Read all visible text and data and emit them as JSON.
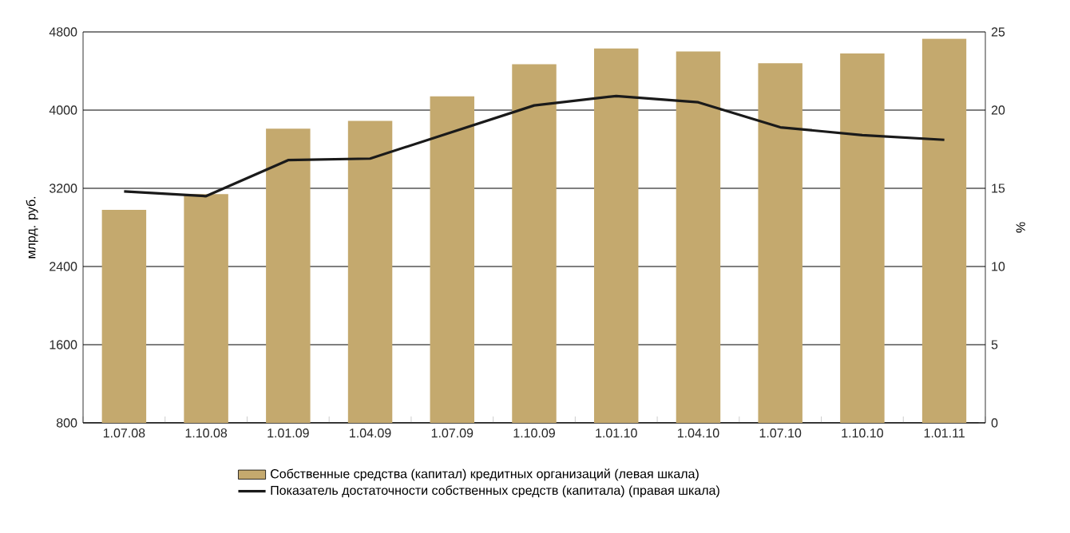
{
  "chart_data": {
    "type": "bar",
    "ylabel": "млрд. руб.",
    "y2label": "%",
    "categories": [
      "1.07.08",
      "1.10.08",
      "1.01.09",
      "1.04.09",
      "1.07.09",
      "1.10.09",
      "1.01.10",
      "1.04.10",
      "1.07.10",
      "1.10.10",
      "1.01.11"
    ],
    "series": [
      {
        "name": "Собственные средства (капитал) кредитных организаций (левая шкала)",
        "color": "#c4a96e",
        "values": [
          2980,
          3140,
          3810,
          3890,
          4140,
          4470,
          4630,
          4600,
          4480,
          4580,
          4730
        ]
      },
      {
        "name": "Показатель достаточности собственных средств (капитала) (правая шкала)",
        "type": "line",
        "axis": "y2",
        "color": "#1a1a1a",
        "values": [
          14.8,
          14.5,
          16.8,
          16.9,
          18.6,
          20.3,
          20.9,
          20.5,
          18.9,
          18.4,
          18.1
        ]
      }
    ],
    "ylim": [
      800,
      4800
    ],
    "yticks": [
      800,
      1600,
      2400,
      3200,
      4000,
      4800
    ],
    "y2lim": [
      0,
      25
    ],
    "y2ticks": [
      0,
      5,
      10,
      15,
      20,
      25
    ],
    "grid": "y",
    "legend": "bottom"
  }
}
